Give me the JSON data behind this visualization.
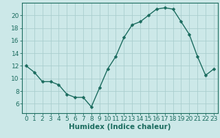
{
  "x": [
    0,
    1,
    2,
    3,
    4,
    5,
    6,
    7,
    8,
    9,
    10,
    11,
    12,
    13,
    14,
    15,
    16,
    17,
    18,
    19,
    20,
    21,
    22,
    23
  ],
  "y": [
    12,
    11,
    9.5,
    9.5,
    9,
    7.5,
    7,
    7,
    5.5,
    8.5,
    11.5,
    13.5,
    16.5,
    18.5,
    19.0,
    20,
    21,
    21.2,
    21,
    19,
    17,
    13.5,
    10.5,
    11.5
  ],
  "line_color": "#1a6b5e",
  "marker": "D",
  "marker_size": 2.5,
  "bg_color": "#cce8e8",
  "grid_color": "#aacece",
  "xlabel": "Humidex (Indice chaleur)",
  "xlim": [
    -0.5,
    23.5
  ],
  "ylim": [
    4.5,
    22
  ],
  "yticks": [
    6,
    8,
    10,
    12,
    14,
    16,
    18,
    20
  ],
  "xticks": [
    0,
    1,
    2,
    3,
    4,
    5,
    6,
    7,
    8,
    9,
    10,
    11,
    12,
    13,
    14,
    15,
    16,
    17,
    18,
    19,
    20,
    21,
    22,
    23
  ],
  "tick_color": "#1a6b5e",
  "label_color": "#1a6b5e",
  "xlabel_fontsize": 7.5,
  "tick_fontsize": 6.5,
  "linewidth": 1.0
}
